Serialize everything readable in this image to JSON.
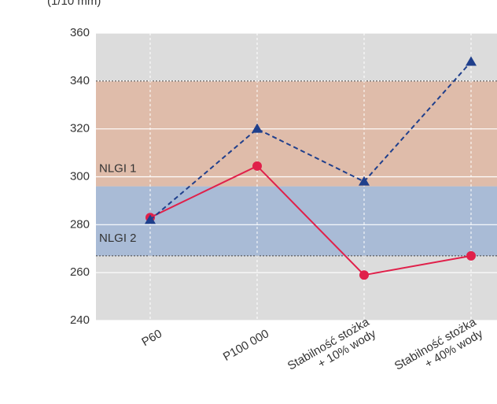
{
  "chart_data": {
    "type": "line",
    "y_label": "(1/10 mm)",
    "categories": [
      [
        "P60"
      ],
      [
        "P100 000"
      ],
      [
        "Stabilność stożka",
        "+ 10% wody"
      ],
      [
        "Stabilność stożka",
        "+ 40% wody"
      ]
    ],
    "series": [
      {
        "color": "#e0204a",
        "marker": "circle",
        "dashed": false,
        "values": [
          283,
          304.5,
          259,
          267
        ]
      },
      {
        "color": "#1f3f8c",
        "marker": "triangle",
        "dashed": true,
        "values": [
          282,
          320,
          298,
          348
        ]
      }
    ],
    "bands": [
      {
        "label": "NLGI 1",
        "range": [
          296,
          340
        ],
        "color": "#dfbcaa"
      },
      {
        "label": "NLGI 2",
        "range": [
          267,
          296
        ],
        "color": "#a9bbd6"
      }
    ],
    "ylim": [
      240,
      360
    ],
    "yticks": [
      240,
      260,
      280,
      300,
      320,
      340,
      360
    ],
    "grid": true
  }
}
